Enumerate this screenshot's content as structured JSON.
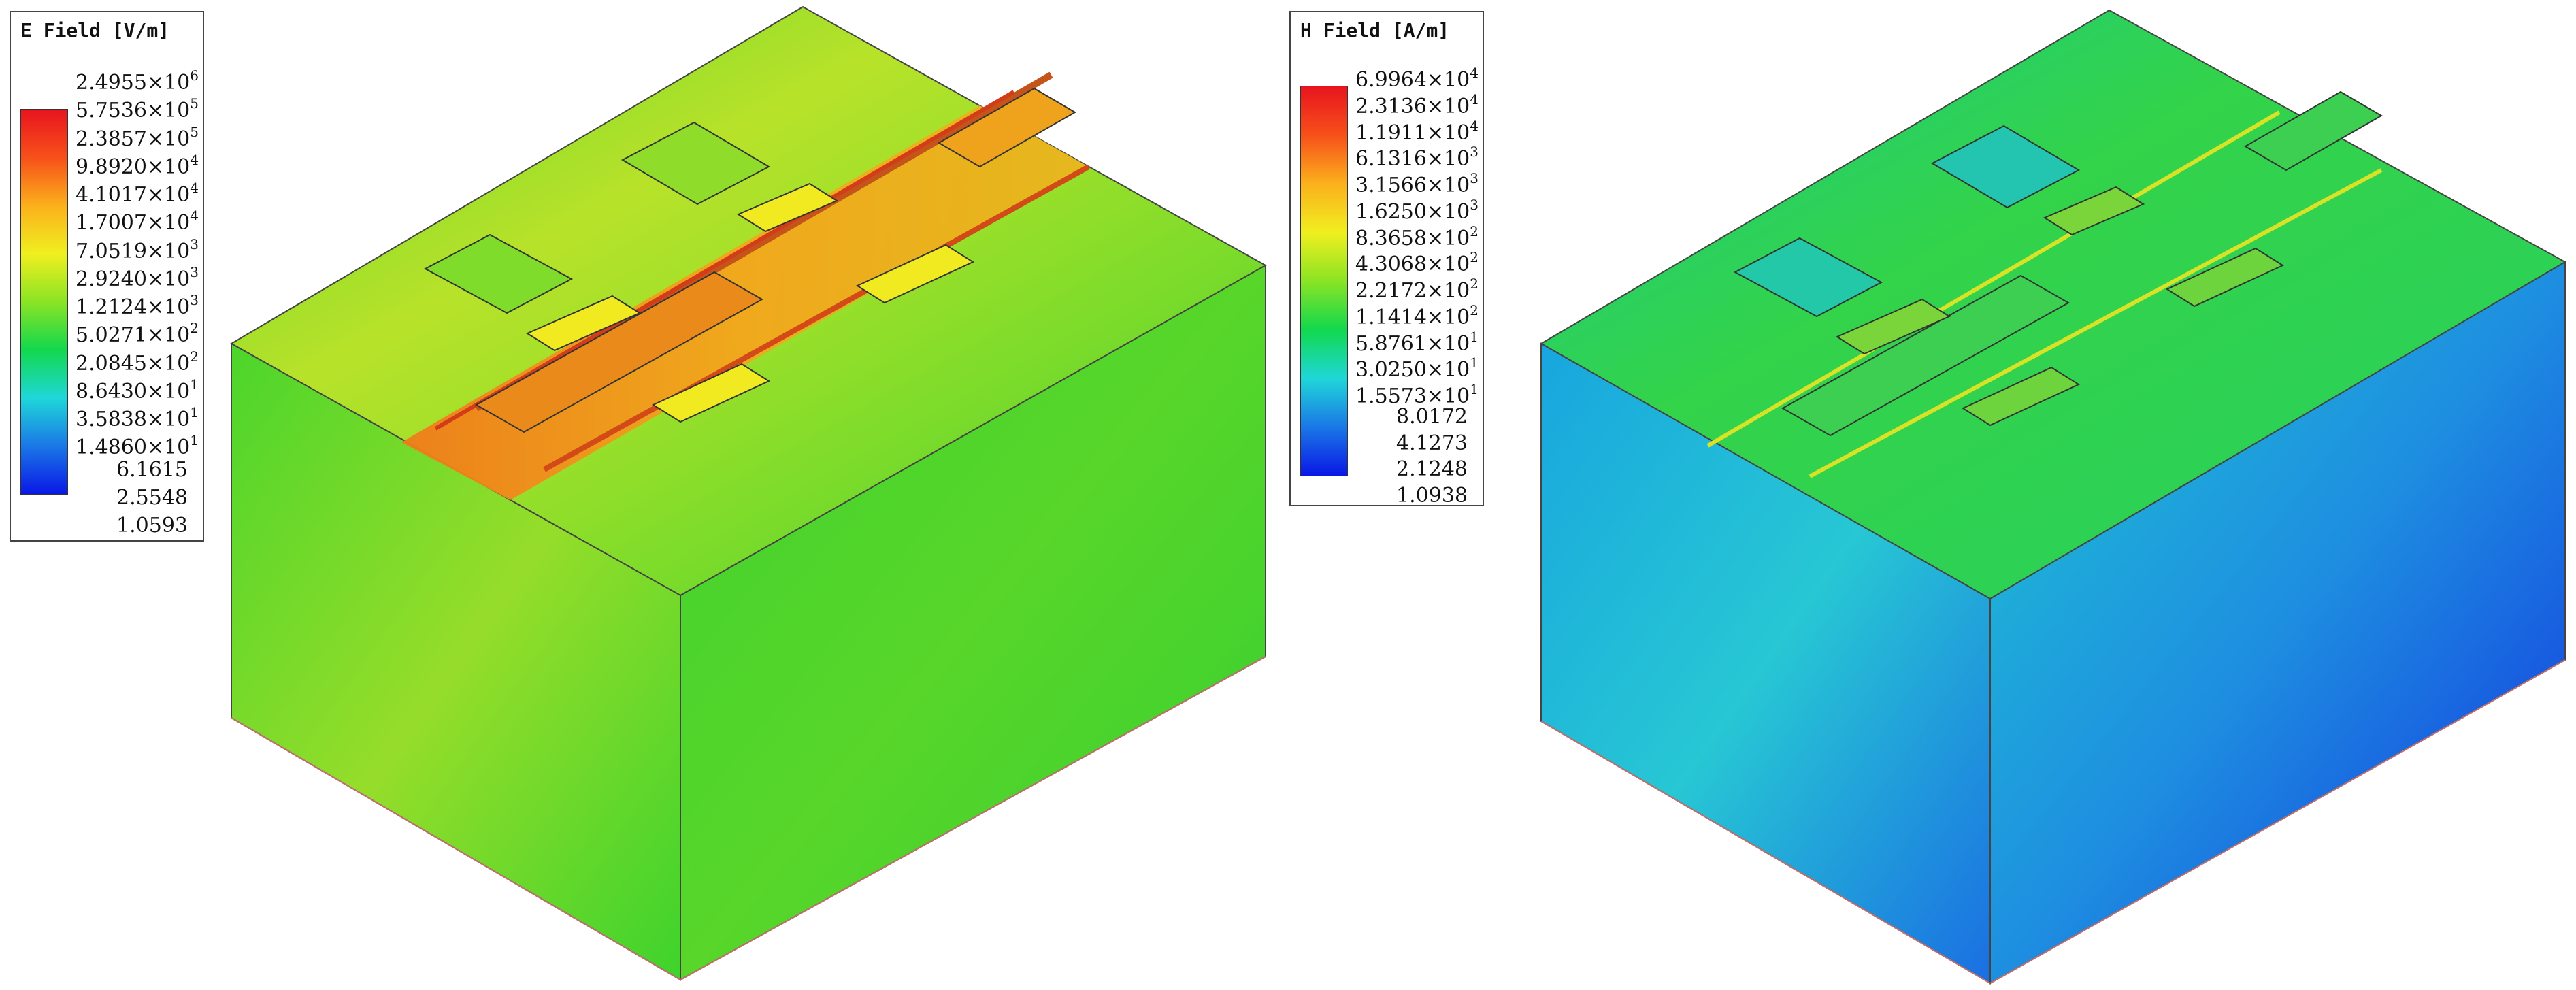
{
  "e_legend": {
    "title": "E Field [V/m]",
    "colors": [
      "#e8141e",
      "#f7501a",
      "#fbb01c",
      "#f0ef1f",
      "#8be424",
      "#12d84d",
      "#1fd7d8",
      "#1a78e6",
      "#0a18e6"
    ],
    "ticks": [
      {
        "m": "2.4955×10",
        "e": "6"
      },
      {
        "m": "5.7536×10",
        "e": "5"
      },
      {
        "m": "2.3857×10",
        "e": "5"
      },
      {
        "m": "9.8920×10",
        "e": "4"
      },
      {
        "m": "4.1017×10",
        "e": "4"
      },
      {
        "m": "1.7007×10",
        "e": "4"
      },
      {
        "m": "7.0519×10",
        "e": "3"
      },
      {
        "m": "2.9240×10",
        "e": "3"
      },
      {
        "m": "1.2124×10",
        "e": "3"
      },
      {
        "m": "5.0271×10",
        "e": "2"
      },
      {
        "m": "2.0845×10",
        "e": "2"
      },
      {
        "m": "8.6430×10",
        "e": "1"
      },
      {
        "m": "3.5838×10",
        "e": "1"
      },
      {
        "m": "1.4860×10",
        "e": "1"
      },
      {
        "m": "6.1615",
        "e": ""
      },
      {
        "m": "2.5548",
        "e": ""
      },
      {
        "m": "1.0593",
        "e": ""
      }
    ]
  },
  "h_legend": {
    "title": "H Field [A/m]",
    "colors": [
      "#e8141e",
      "#f7501a",
      "#fbb01c",
      "#f0ef1f",
      "#8be424",
      "#12d84d",
      "#1fd7d8",
      "#1a78e6",
      "#0a18e6"
    ],
    "ticks": [
      {
        "m": "6.9964×10",
        "e": "4"
      },
      {
        "m": "2.3136×10",
        "e": "4"
      },
      {
        "m": "1.1911×10",
        "e": "4"
      },
      {
        "m": "6.1316×10",
        "e": "3"
      },
      {
        "m": "3.1566×10",
        "e": "3"
      },
      {
        "m": "1.6250×10",
        "e": "3"
      },
      {
        "m": "8.3658×10",
        "e": "2"
      },
      {
        "m": "4.3068×10",
        "e": "2"
      },
      {
        "m": "2.2172×10",
        "e": "2"
      },
      {
        "m": "1.1414×10",
        "e": "2"
      },
      {
        "m": "5.8761×10",
        "e": "1"
      },
      {
        "m": "3.0250×10",
        "e": "1"
      },
      {
        "m": "1.5573×10",
        "e": "1"
      },
      {
        "m": "8.0172",
        "e": ""
      },
      {
        "m": "4.1273",
        "e": ""
      },
      {
        "m": "2.1248",
        "e": ""
      },
      {
        "m": "1.0938",
        "e": ""
      }
    ]
  }
}
